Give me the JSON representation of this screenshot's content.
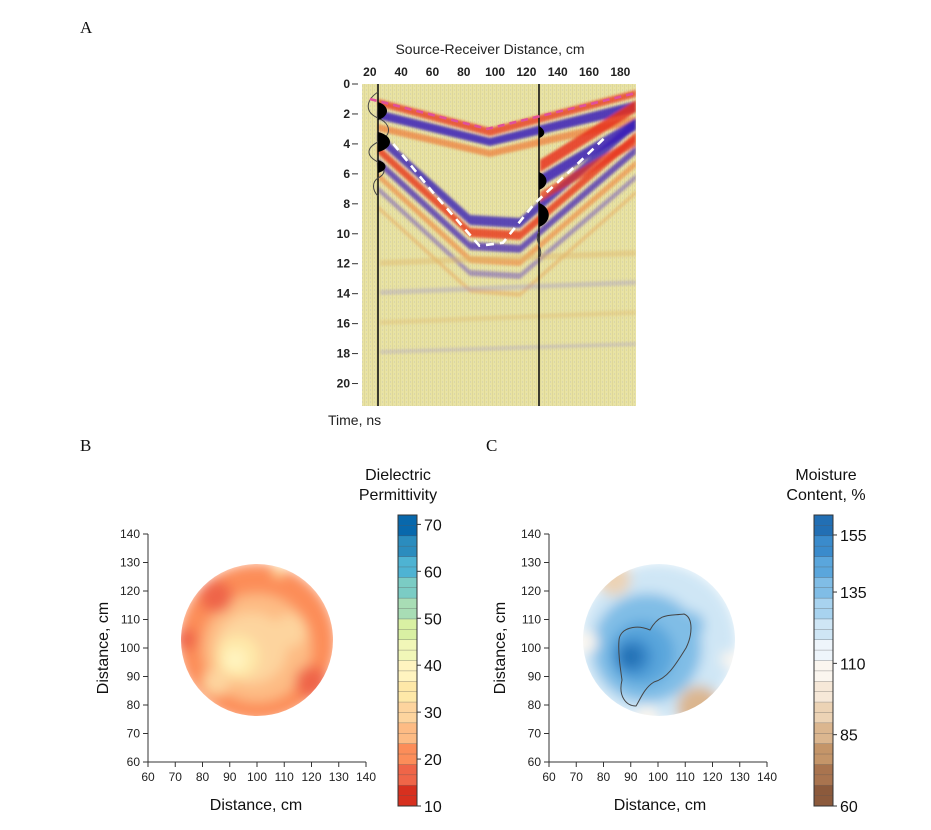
{
  "panel_labels": [
    "A",
    "B",
    "C"
  ],
  "chart_data": [
    {
      "id": "A",
      "type": "radargram",
      "title": "Source-Receiver Distance, cm",
      "xlabel": "Source-Receiver Distance, cm",
      "ylabel": "Time, ns",
      "x_ticks": [
        20,
        40,
        60,
        80,
        100,
        120,
        140,
        160,
        180
      ],
      "y_ticks": [
        0,
        2,
        4,
        6,
        8,
        10,
        12,
        14,
        16,
        18,
        20
      ],
      "xlim": [
        15,
        190
      ],
      "ylim": [
        0,
        21.5
      ],
      "annotations": {
        "direct_air_wave_pink_dashed": {
          "x": [
            20,
            95,
            190
          ],
          "y": [
            1.0,
            3.0,
            0.6
          ]
        },
        "reflection_white_dashed": {
          "x": [
            35,
            60,
            90,
            105,
            125,
            150,
            172
          ],
          "y": [
            4.0,
            7.2,
            10.8,
            10.6,
            8.0,
            5.6,
            3.4
          ]
        },
        "trace_markers_x": [
          20,
          125
        ]
      },
      "colors": {
        "positive": "#e8321c",
        "negative": "#3a1fb8",
        "neutral": "#e9e3a4",
        "air_line": "#e0509a",
        "reflection_line": "#ffffff"
      }
    },
    {
      "id": "B",
      "type": "heatmap",
      "xlabel": "Distance, cm",
      "ylabel": "Distance, cm",
      "x_ticks": [
        60,
        70,
        80,
        90,
        100,
        110,
        120,
        130,
        140
      ],
      "y_ticks": [
        60,
        70,
        80,
        90,
        100,
        110,
        120,
        130,
        140
      ],
      "xlim": [
        60,
        140
      ],
      "ylim": [
        60,
        140
      ],
      "center": [
        100,
        102
      ],
      "radius": 27,
      "colorbar": {
        "title_lines": [
          "Dielectric",
          "Permittivity"
        ],
        "ticks": [
          10,
          20,
          30,
          40,
          50,
          60,
          70
        ],
        "range": [
          10,
          72
        ],
        "colors": [
          "#d7301f",
          "#ef6548",
          "#fc8d59",
          "#fdbb84",
          "#fdd49e",
          "#fee8a8",
          "#fff4c0",
          "#f1f7b8",
          "#d9f0a3",
          "#a8ddb5",
          "#7bccc4",
          "#4eb3d3",
          "#2b8cbe",
          "#0868ac"
        ]
      },
      "blobs": [
        {
          "x": 100,
          "y": 102,
          "r": 29,
          "value": 21
        },
        {
          "x": 100,
          "y": 100,
          "r": 20,
          "value": 26
        },
        {
          "x": 98,
          "y": 100,
          "r": 13,
          "value": 32
        },
        {
          "x": 93,
          "y": 97,
          "r": 8,
          "value": 36
        },
        {
          "x": 92,
          "y": 96,
          "r": 4,
          "value": 39
        },
        {
          "x": 112,
          "y": 106,
          "r": 6,
          "value": 30
        },
        {
          "x": 85,
          "y": 88,
          "r": 5,
          "value": 28
        },
        {
          "x": 85,
          "y": 118,
          "r": 6,
          "value": 16
        },
        {
          "x": 120,
          "y": 88,
          "r": 6,
          "value": 17
        },
        {
          "x": 74,
          "y": 103,
          "r": 4,
          "value": 15
        },
        {
          "x": 108,
          "y": 127,
          "r": 2,
          "value": 36
        }
      ]
    },
    {
      "id": "C",
      "type": "heatmap",
      "xlabel": "Distance, cm",
      "ylabel": "Distance, cm",
      "x_ticks": [
        60,
        70,
        80,
        90,
        100,
        110,
        120,
        130,
        140
      ],
      "y_ticks": [
        60,
        70,
        80,
        90,
        100,
        110,
        120,
        130,
        140
      ],
      "xlim": [
        60,
        140
      ],
      "ylim": [
        60,
        140
      ],
      "center": [
        100,
        102
      ],
      "radius": 27,
      "colorbar": {
        "title_lines": [
          "Moisture",
          "Content, %"
        ],
        "ticks": [
          60,
          85,
          110,
          135,
          155
        ],
        "range": [
          60,
          162
        ],
        "colors": [
          "#8c5a3c",
          "#a9744f",
          "#c49569",
          "#dbb68f",
          "#ecd3b5",
          "#f6e8d8",
          "#fbf6ef",
          "#eef5fb",
          "#cfe6f5",
          "#a8d3ef",
          "#80bde6",
          "#5aa6dc",
          "#3a8bcc",
          "#226fb4"
        ]
      },
      "blobs": [
        {
          "x": 100,
          "y": 102,
          "r": 29,
          "value": 124
        },
        {
          "x": 96,
          "y": 100,
          "r": 20,
          "value": 134
        },
        {
          "x": 94,
          "y": 98,
          "r": 12,
          "value": 142
        },
        {
          "x": 91,
          "y": 97,
          "r": 7,
          "value": 150
        },
        {
          "x": 90,
          "y": 97,
          "r": 4,
          "value": 156
        },
        {
          "x": 112,
          "y": 108,
          "r": 5,
          "value": 140
        },
        {
          "x": 84,
          "y": 124,
          "r": 6,
          "value": 92
        },
        {
          "x": 74,
          "y": 102,
          "r": 4,
          "value": 104
        },
        {
          "x": 115,
          "y": 79,
          "r": 8,
          "value": 86
        },
        {
          "x": 96,
          "y": 76,
          "r": 4,
          "value": 104
        },
        {
          "x": 126,
          "y": 96,
          "r": 3,
          "value": 104
        }
      ]
    }
  ]
}
